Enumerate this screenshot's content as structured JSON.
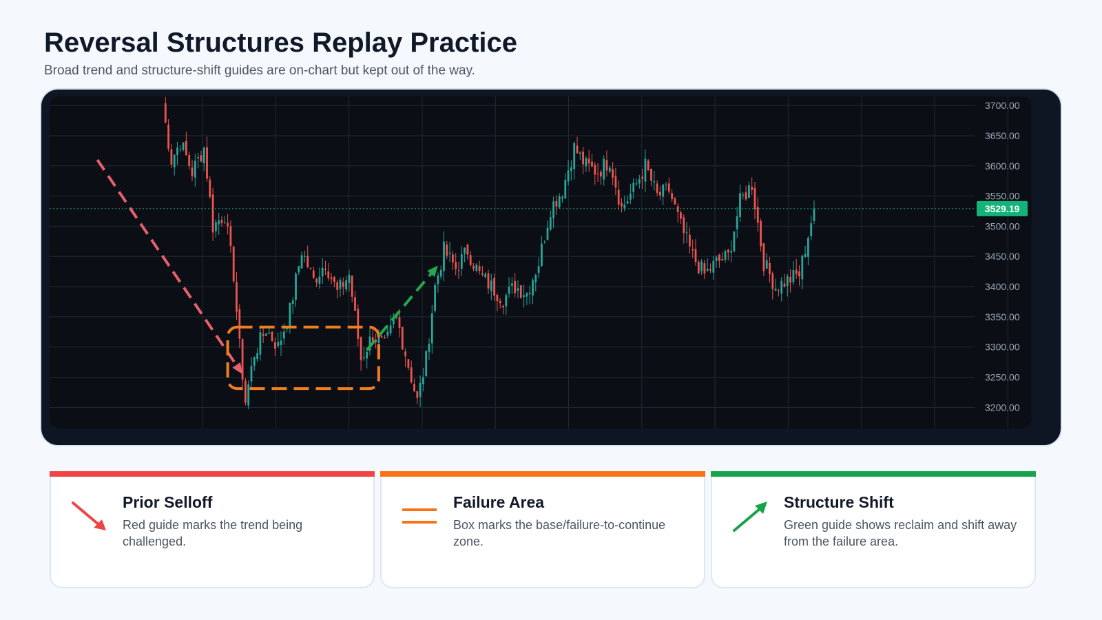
{
  "header": {
    "title": "Reversal Structures Replay Practice",
    "subtitle": "Broad trend and structure-shift guides are on-chart but kept out of the way."
  },
  "chart_data": {
    "type": "candlestick",
    "y_axis": {
      "ticks": [
        "3700.00",
        "3650.00",
        "3600.00",
        "3550.00",
        "3500.00",
        "3450.00",
        "3400.00",
        "3350.00",
        "3300.00",
        "3250.00",
        "3200.00"
      ],
      "range": [
        3165,
        3715
      ]
    },
    "last_price": {
      "value": 3529.19,
      "label": "3529.19"
    },
    "close_path": [
      [
        0,
        3700
      ],
      [
        3,
        3610
      ],
      [
        6,
        3640
      ],
      [
        10,
        3590
      ],
      [
        14,
        3630
      ],
      [
        17,
        3500
      ],
      [
        21,
        3520
      ],
      [
        24,
        3420
      ],
      [
        26,
        3300
      ],
      [
        28,
        3210
      ],
      [
        31,
        3290
      ],
      [
        35,
        3330
      ],
      [
        39,
        3300
      ],
      [
        43,
        3360
      ],
      [
        47,
        3460
      ],
      [
        51,
        3410
      ],
      [
        55,
        3440
      ],
      [
        59,
        3390
      ],
      [
        63,
        3420
      ],
      [
        67,
        3280
      ],
      [
        71,
        3320
      ],
      [
        75,
        3300
      ],
      [
        79,
        3350
      ],
      [
        83,
        3270
      ],
      [
        86,
        3210
      ],
      [
        89,
        3280
      ],
      [
        92,
        3400
      ],
      [
        95,
        3460
      ],
      [
        99,
        3430
      ],
      [
        103,
        3460
      ],
      [
        107,
        3420
      ],
      [
        111,
        3400
      ],
      [
        115,
        3380
      ],
      [
        119,
        3400
      ],
      [
        123,
        3390
      ],
      [
        127,
        3440
      ],
      [
        131,
        3530
      ],
      [
        135,
        3560
      ],
      [
        139,
        3630
      ],
      [
        143,
        3600
      ],
      [
        147,
        3590
      ],
      [
        151,
        3610
      ],
      [
        155,
        3530
      ],
      [
        159,
        3560
      ],
      [
        163,
        3600
      ],
      [
        167,
        3550
      ],
      [
        171,
        3560
      ],
      [
        175,
        3500
      ],
      [
        179,
        3450
      ],
      [
        183,
        3420
      ],
      [
        187,
        3440
      ],
      [
        191,
        3450
      ],
      [
        195,
        3540
      ],
      [
        199,
        3570
      ],
      [
        203,
        3440
      ],
      [
        207,
        3400
      ],
      [
        211,
        3410
      ],
      [
        215,
        3420
      ],
      [
        220,
        3529.19
      ]
    ],
    "annotations": [
      {
        "kind": "arrow",
        "color": "#e8606c",
        "style": "dashed",
        "from": [
          -22,
          3610
        ],
        "to": [
          27,
          3255
        ]
      },
      {
        "kind": "box",
        "color": "#f07f22",
        "style": "dashed",
        "x": [
          22,
          73
        ],
        "y": [
          3231,
          3333
        ]
      },
      {
        "kind": "arrow",
        "color": "#22a851",
        "style": "dashed",
        "from": [
          69,
          3295
        ],
        "to": [
          93,
          3435
        ]
      }
    ],
    "grid": true,
    "colors": {
      "up": "#26a69a",
      "down": "#ef5350",
      "background": "#0b0f15",
      "grid": "#1f2a36",
      "last_price": "#13b37a"
    }
  },
  "legend_cards": [
    {
      "title": "Prior Selloff",
      "description": "Red guide marks the trend being challenged.",
      "color": "#ef4444",
      "icon": "red-down-arrow-icon"
    },
    {
      "title": "Failure Area",
      "description": "Box marks the base/failure-to-continue zone.",
      "color": "#f97316",
      "icon": "orange-double-line-icon"
    },
    {
      "title": "Structure Shift",
      "description": "Green guide shows reclaim and shift away from the failure area.",
      "color": "#16a34a",
      "icon": "green-up-arrow-icon"
    }
  ]
}
